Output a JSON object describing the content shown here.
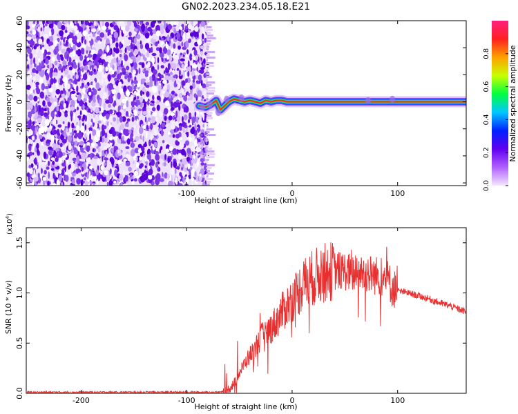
{
  "title": "GN02.2023.234.05.18.E21",
  "chart_data": [
    {
      "type": "heatmap",
      "xlabel": "Height of straight line (km)",
      "ylabel": "Frequency (Hz)",
      "xlim": [
        -252,
        165
      ],
      "ylim": [
        -62,
        60
      ],
      "xticks": [
        -200,
        -100,
        0,
        100
      ],
      "yticks": [
        -60,
        -40,
        -20,
        0,
        20,
        40,
        60
      ],
      "colorbar": {
        "label": "Normalized spectral amplitude",
        "range": [
          0,
          1
        ],
        "ticks": [
          0.0,
          0.2,
          0.4,
          0.6,
          0.8
        ],
        "colormap": [
          "#f5e6ff",
          "#b060ff",
          "#6000f0",
          "#0020ff",
          "#00c8ff",
          "#00ff40",
          "#c8ff00",
          "#ffa000",
          "#ff2020",
          "#ff2080"
        ]
      },
      "noise_region_x": [
        -252,
        -80
      ],
      "signal_line": {
        "points": [
          [
            -88,
            -3
          ],
          [
            -82,
            -4
          ],
          [
            -77,
            -2
          ],
          [
            -72,
            1
          ],
          [
            -68,
            -6
          ],
          [
            -64,
            -3
          ],
          [
            -60,
            0
          ],
          [
            -55,
            2
          ],
          [
            -50,
            1
          ],
          [
            -45,
            0
          ],
          [
            -40,
            1
          ],
          [
            -35,
            0
          ],
          [
            -30,
            -1
          ],
          [
            -25,
            1
          ],
          [
            -20,
            0
          ],
          [
            -15,
            1
          ],
          [
            -10,
            1
          ],
          [
            -5,
            0
          ],
          [
            0,
            0
          ],
          [
            50,
            0
          ],
          [
            100,
            0
          ],
          [
            165,
            0
          ]
        ]
      }
    },
    {
      "type": "line",
      "xlabel": "Height of straight line (km)",
      "ylabel": "SNR (10 * v/v)",
      "yscale_label": "(x10",
      "yscale_exp": "4",
      "yscale_close": ")",
      "xlim": [
        -252,
        165
      ],
      "ylim": [
        0,
        1.65
      ],
      "xticks": [
        -200,
        -100,
        0,
        100
      ],
      "yticks": [
        0.0,
        0.5,
        1.0,
        1.5
      ],
      "yticklabels": [
        "0.0",
        "0.5",
        "1.0",
        "1.5"
      ],
      "color": "#e83030",
      "series": [
        {
          "x": [
            -252,
            -200,
            -150,
            -100,
            -70,
            -62,
            -55,
            -50,
            -45,
            -40,
            -35,
            -30,
            -25,
            -20,
            -15,
            -10,
            -5,
            0,
            5,
            10,
            20,
            30,
            40,
            50,
            55,
            60,
            70,
            80,
            90,
            95,
            100,
            110,
            120,
            130,
            140,
            150,
            160,
            165
          ],
          "values": [
            0.01,
            0.01,
            0.01,
            0.01,
            0.01,
            0.02,
            0.1,
            0.2,
            0.3,
            0.38,
            0.45,
            0.55,
            0.6,
            0.65,
            0.72,
            0.8,
            0.87,
            0.93,
            1.0,
            1.08,
            1.15,
            1.2,
            1.22,
            1.22,
            1.2,
            1.18,
            1.2,
            1.17,
            1.15,
            1.05,
            1.02,
            1.0,
            0.97,
            0.94,
            0.9,
            0.87,
            0.83,
            0.81
          ]
        }
      ]
    }
  ]
}
